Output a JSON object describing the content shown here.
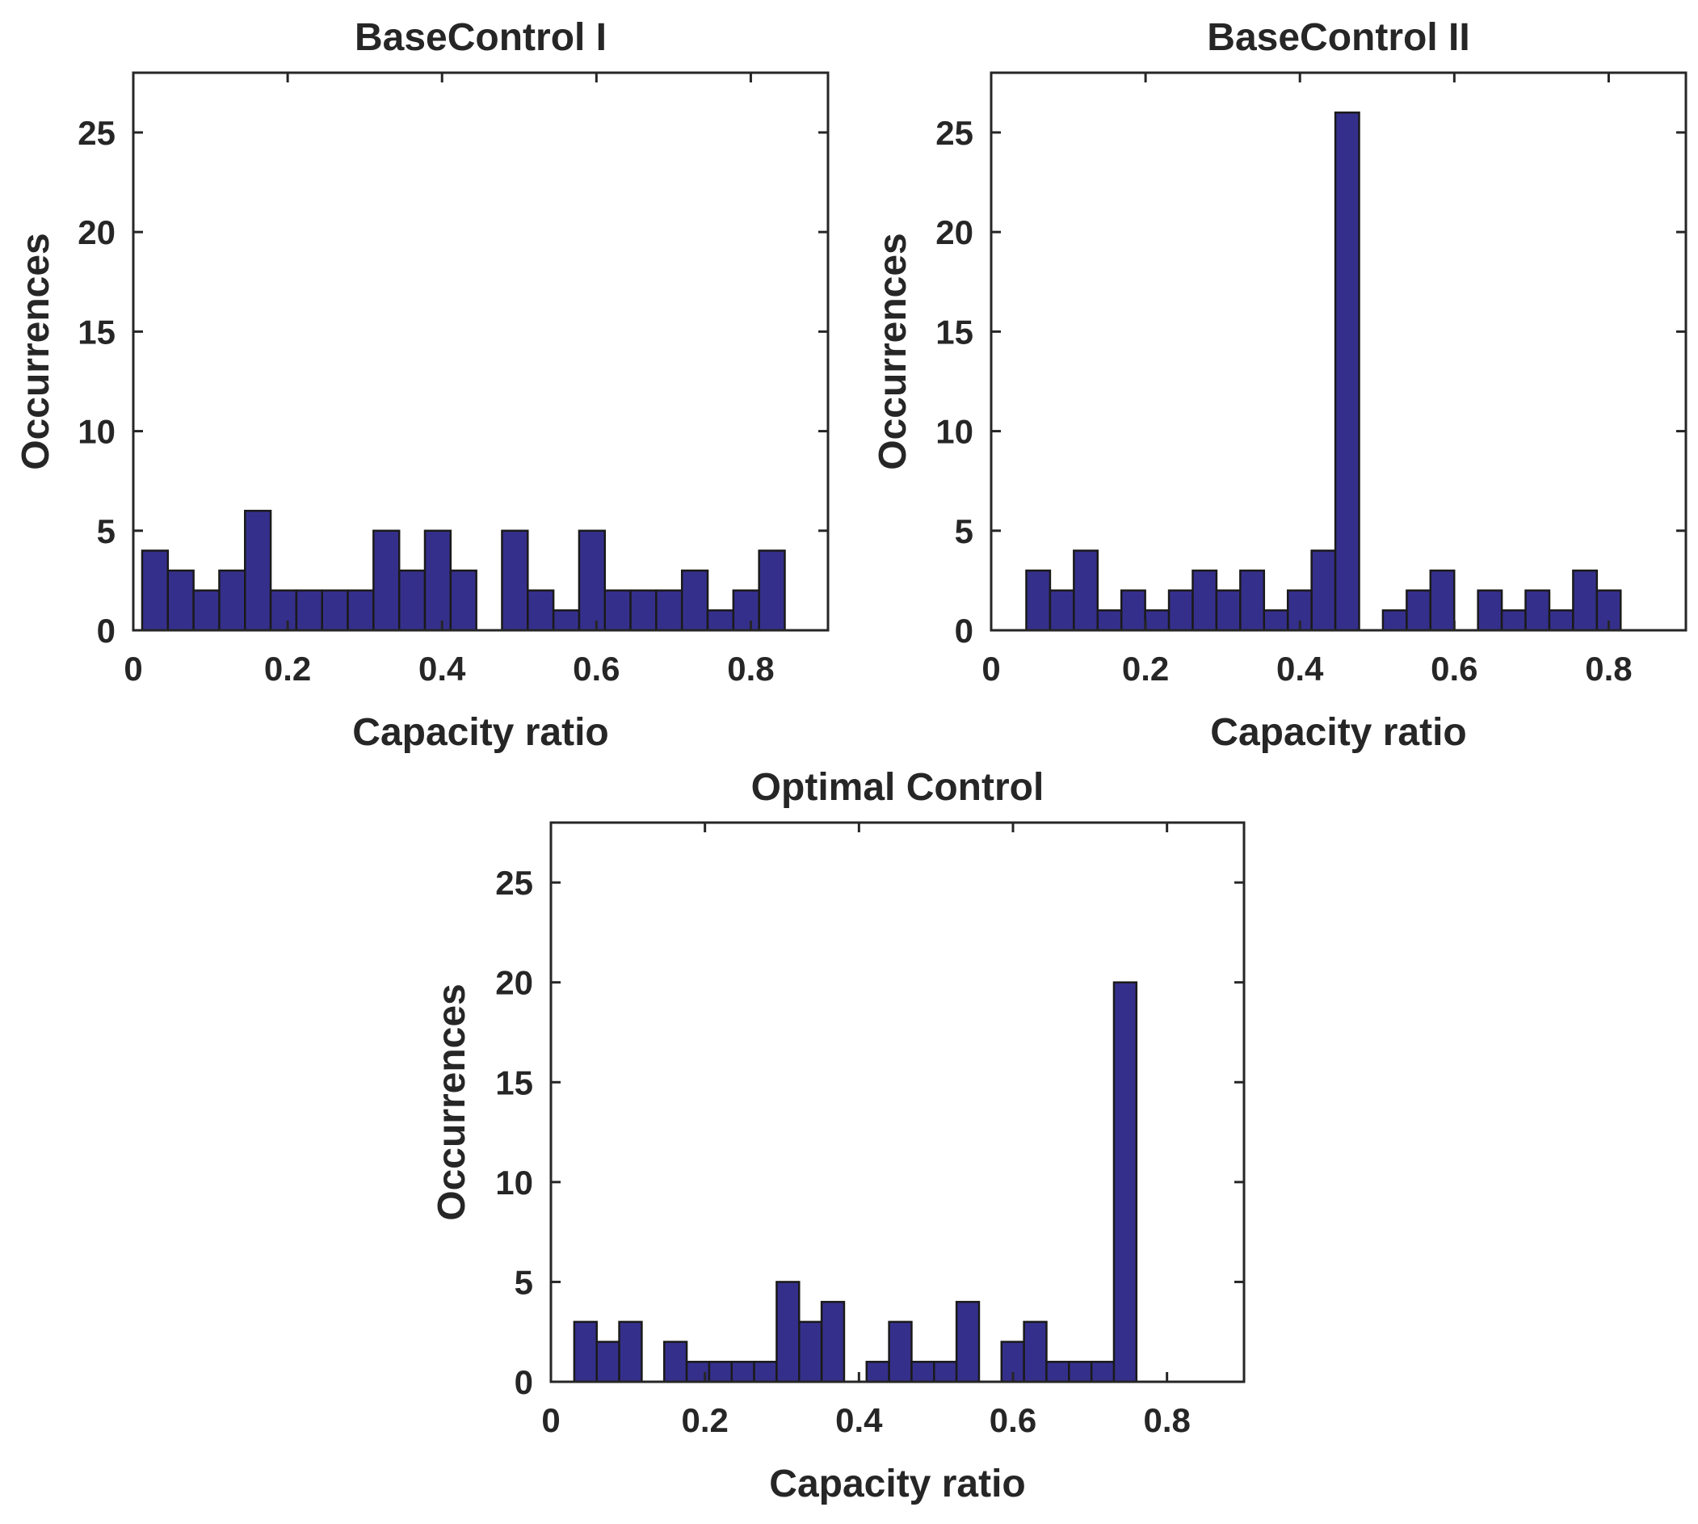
{
  "chart_data": [
    {
      "type": "bar",
      "title": "BaseControl I",
      "xlabel": "Capacity ratio",
      "ylabel": "Occurrences",
      "xlim": [
        0,
        0.9
      ],
      "ylim": [
        0,
        28
      ],
      "xticks": [
        "0",
        "0.2",
        "0.4",
        "0.6",
        "0.8"
      ],
      "xtick_values": [
        0,
        0.2,
        0.4,
        0.6,
        0.8
      ],
      "yticks": [
        "0",
        "5",
        "10",
        "15",
        "20",
        "25"
      ],
      "ytick_values": [
        0,
        5,
        10,
        15,
        20,
        25
      ],
      "bin_start": 0.0115,
      "bin_width": 0.0333,
      "values": [
        4,
        3,
        2,
        3,
        6,
        2,
        2,
        2,
        2,
        5,
        3,
        5,
        3,
        0,
        5,
        2,
        1,
        5,
        2,
        2,
        2,
        3,
        1,
        2,
        4
      ],
      "bar_color": "#352F8C"
    },
    {
      "type": "bar",
      "title": "BaseControl II",
      "xlabel": "Capacity ratio",
      "ylabel": "Occurrences",
      "xlim": [
        0,
        0.9
      ],
      "ylim": [
        0,
        28
      ],
      "xticks": [
        "0",
        "0.2",
        "0.4",
        "0.6",
        "0.8"
      ],
      "xtick_values": [
        0,
        0.2,
        0.4,
        0.6,
        0.8
      ],
      "yticks": [
        "0",
        "5",
        "10",
        "15",
        "20",
        "25"
      ],
      "ytick_values": [
        0,
        5,
        10,
        15,
        20,
        25
      ],
      "bin_start": 0.0455,
      "bin_width": 0.0308,
      "values": [
        3,
        2,
        4,
        1,
        2,
        1,
        2,
        3,
        2,
        3,
        1,
        2,
        4,
        26,
        0,
        1,
        2,
        3,
        0,
        2,
        1,
        2,
        1,
        3,
        2
      ],
      "bar_color": "#352F8C"
    },
    {
      "type": "bar",
      "title": "Optimal Control",
      "xlabel": "Capacity ratio",
      "ylabel": "Occurrences",
      "xlim": [
        0,
        0.9
      ],
      "ylim": [
        0,
        28
      ],
      "xticks": [
        "0",
        "0.2",
        "0.4",
        "0.6",
        "0.8"
      ],
      "xtick_values": [
        0,
        0.2,
        0.4,
        0.6,
        0.8
      ],
      "yticks": [
        "0",
        "5",
        "10",
        "15",
        "20",
        "25"
      ],
      "ytick_values": [
        0,
        5,
        10,
        15,
        20,
        25
      ],
      "bin_start": 0.0303,
      "bin_width": 0.0292,
      "values": [
        3,
        2,
        3,
        0,
        2,
        1,
        1,
        1,
        1,
        5,
        3,
        4,
        0,
        1,
        3,
        1,
        1,
        4,
        0,
        2,
        3,
        1,
        1,
        1,
        20
      ],
      "bar_color": "#352F8C"
    }
  ]
}
